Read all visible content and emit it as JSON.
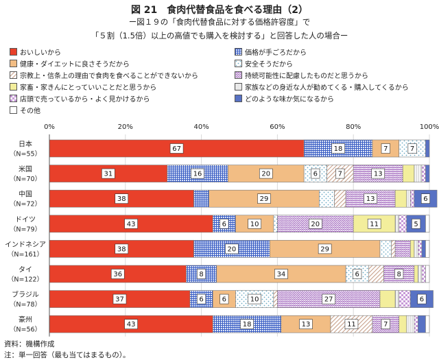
{
  "title": "図 21　食肉代替食品を食べる理由（2）",
  "subtitle1": "ー図１９の「食肉代替食品に対する価格許容度」で",
  "subtitle2": "「５割（1.5倍）以上の高値でも購入を検討する」と回答した人の場合ー",
  "legend_items": [
    {
      "label": "おいしいから",
      "color": "#e8402a",
      "pattern": "solid"
    },
    {
      "label": "価格が手ごろだから",
      "color": "#3a5ec4",
      "pattern": "grid"
    },
    {
      "label": "健康・ダイエットに良さそうだから",
      "color": "#f2bd84",
      "pattern": "solid"
    },
    {
      "label": "安全そうだから",
      "color": "#6aa9c4",
      "pattern": "dots"
    },
    {
      "label": "宗教上・信条上の理由で食肉を食べることができないから",
      "color": "#c7a08a",
      "pattern": "diagonal"
    },
    {
      "label": "持続可能性に配慮したものだと思うから",
      "color": "#9a5cb8",
      "pattern": "zigzag"
    },
    {
      "label": "家畜・家きんにとっていいことだと思うから",
      "color": "#f3ee9c",
      "pattern": "solid"
    },
    {
      "label": "家族などの身近な人が勧めてくる・購入してくるから",
      "color": "#bfbfbf",
      "pattern": "vlines"
    },
    {
      "label": "店頭で売っているから・よく見かけるから",
      "color": "#c79ad8",
      "pattern": "checker"
    },
    {
      "label": "どのような味か気になるから",
      "color": "#5872c4",
      "pattern": "solid"
    },
    {
      "label": "その他",
      "color": "#ffffff",
      "pattern": "solid"
    }
  ],
  "axis_ticks": [
    "0%",
    "20%",
    "40%",
    "60%",
    "80%",
    "100%"
  ],
  "footnote1": "資料：機構作成",
  "footnote2": "注：単一回答（最も当てはまるもの）。",
  "colors": {
    "bar_border": "#777777",
    "grid": "#d8d8d8"
  },
  "chart_data": {
    "type": "bar",
    "orientation": "horizontal",
    "stacked": true,
    "xlim": [
      0,
      100
    ],
    "categories": [
      {
        "name": "日本",
        "n": "（N=55）"
      },
      {
        "name": "米国",
        "n": "（N=70）"
      },
      {
        "name": "中国",
        "n": "（N=72）"
      },
      {
        "name": "ドイツ",
        "n": "（N=79）"
      },
      {
        "name": "インドネシア",
        "n": "（N=161）"
      },
      {
        "name": "タイ",
        "n": "（N=122）"
      },
      {
        "name": "ブラジル",
        "n": "（N=78）"
      },
      {
        "name": "豪州",
        "n": "（N=56）"
      }
    ],
    "series": [
      {
        "name": "おいしいから",
        "values": [
          67,
          31,
          38,
          43,
          38,
          36,
          37,
          43
        ]
      },
      {
        "name": "価格が手ごろだから",
        "values": [
          18,
          16,
          4,
          6,
          20,
          8,
          6,
          18
        ]
      },
      {
        "name": "健康・ダイエットに良さそうだから",
        "values": [
          7,
          20,
          29,
          10,
          29,
          34,
          6,
          13
        ]
      },
      {
        "name": "安全そうだから",
        "values": [
          7,
          6,
          4,
          1,
          3,
          6,
          10,
          0
        ]
      },
      {
        "name": "宗教上・信条上の理由で食肉を食べることができないから",
        "values": [
          0,
          7,
          3,
          0,
          1,
          4,
          1,
          11
        ]
      },
      {
        "name": "持続可能性に配慮したものだと思うから",
        "values": [
          0,
          13,
          13,
          20,
          4,
          8,
          27,
          7
        ]
      },
      {
        "name": "家畜・家きんにとっていいことだと思うから",
        "values": [
          0,
          3,
          3,
          11,
          1,
          1,
          4,
          2
        ]
      },
      {
        "name": "家族などの身近な人が勧めてくる・購入してくるから",
        "values": [
          0,
          2,
          1,
          1,
          1,
          1,
          1,
          2
        ]
      },
      {
        "name": "店頭で売っているから・よく見かけるから",
        "values": [
          0,
          1,
          1,
          2,
          1,
          1,
          3,
          1
        ]
      },
      {
        "name": "どのような味か気になるから",
        "values": [
          1,
          1,
          6,
          5,
          1,
          0,
          6,
          2
        ]
      },
      {
        "name": "その他",
        "values": [
          0,
          0,
          0,
          1,
          1,
          1,
          0,
          1
        ]
      }
    ],
    "labeled_min": 5
  }
}
